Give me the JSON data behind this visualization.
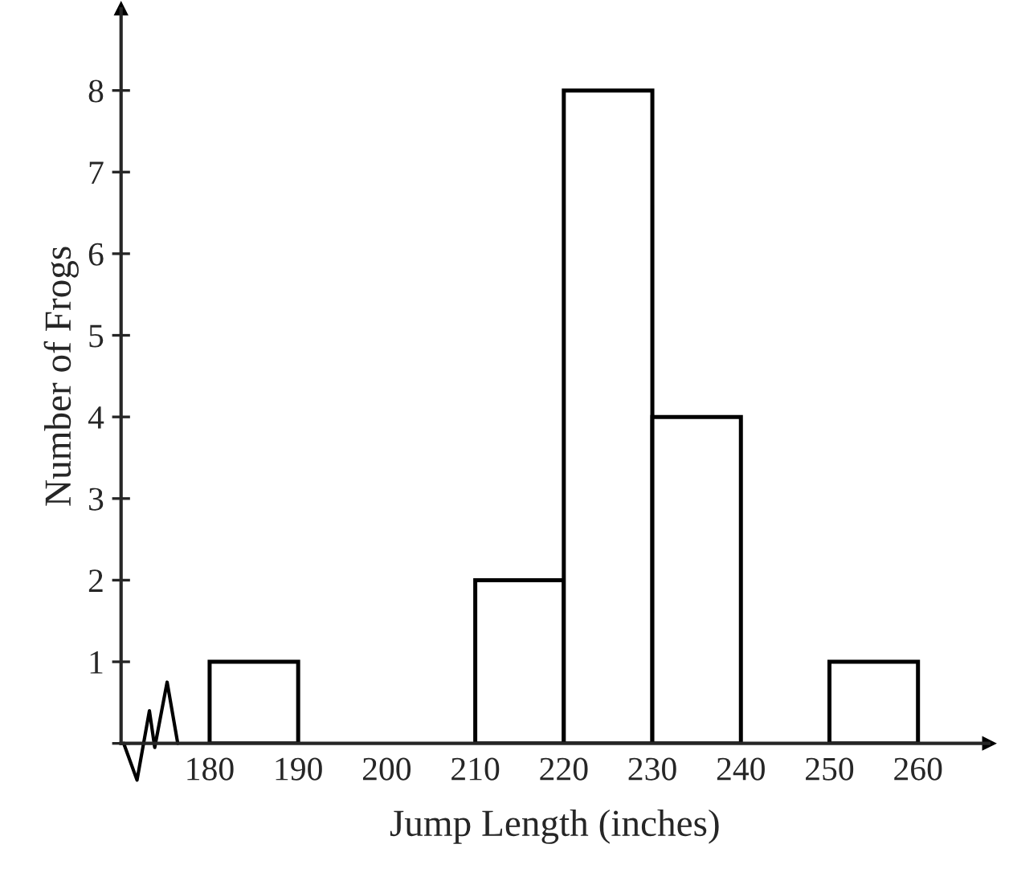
{
  "chart_data": {
    "type": "histogram",
    "xlabel": "Jump Length (inches)",
    "ylabel": "Number of Frogs",
    "bins": [
      180,
      190,
      200,
      210,
      220,
      230,
      240,
      250,
      260
    ],
    "values": [
      1,
      0,
      0,
      2,
      8,
      4,
      0,
      1
    ],
    "color": "#ffffff",
    "xlim": [
      170,
      268
    ],
    "ylim": [
      0,
      9
    ],
    "xticks": [
      180,
      190,
      200,
      210,
      220,
      230,
      240,
      250,
      260
    ],
    "yticks": [
      {
        "value": 0,
        "label": null
      },
      1,
      2,
      3,
      4,
      5,
      6,
      7,
      8
    ],
    "grid": false
  }
}
